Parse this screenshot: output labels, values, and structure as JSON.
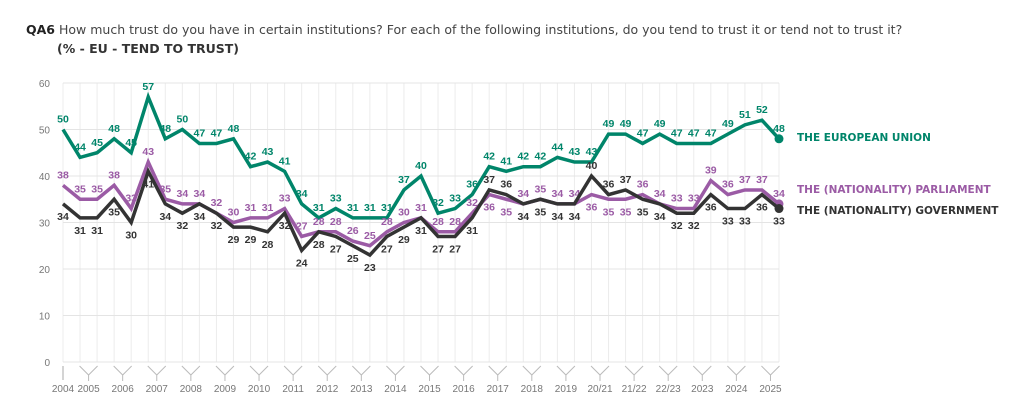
{
  "header": {
    "question_code": "QA6",
    "question": "How much trust do you have in certain institutions? For each of the following institutions, do you tend to trust it or tend not to trust it?",
    "subtitle": "(% - EU - TEND TO TRUST)"
  },
  "chart_data": {
    "type": "line",
    "title": "",
    "xlabel": "",
    "ylabel": "",
    "ylim": [
      0,
      60
    ],
    "yticks": [
      0,
      10,
      20,
      30,
      40,
      50,
      60
    ],
    "grid": true,
    "legend": "right (end-of-line labels)",
    "x_tick_labels": [
      {
        "label": "2004",
        "index": 0
      },
      {
        "label": "2005",
        "index": 1.5
      },
      {
        "label": "2006",
        "index": 3.5
      },
      {
        "label": "2007",
        "index": 5.5
      },
      {
        "label": "2008",
        "index": 7.5
      },
      {
        "label": "2009",
        "index": 9.5
      },
      {
        "label": "2010",
        "index": 11.5
      },
      {
        "label": "2011",
        "index": 13.5
      },
      {
        "label": "2012",
        "index": 15.5
      },
      {
        "label": "2013",
        "index": 17.5
      },
      {
        "label": "2014",
        "index": 19.5
      },
      {
        "label": "2015",
        "index": 21.5
      },
      {
        "label": "2016",
        "index": 23.5
      },
      {
        "label": "2017",
        "index": 25.5
      },
      {
        "label": "2018",
        "index": 27.5
      },
      {
        "label": "2019",
        "index": 29.5
      },
      {
        "label": "20/21",
        "index": 31.5
      },
      {
        "label": "21/22",
        "index": 33.5
      },
      {
        "label": "22/23",
        "index": 35.5
      },
      {
        "label": "2023",
        "index": 37.5
      },
      {
        "label": "2024",
        "index": 39.5
      },
      {
        "label": "2025",
        "index": 41.5
      }
    ],
    "series": [
      {
        "name": "THE EUROPEAN UNION",
        "color": "#00856a",
        "label_pos": "above",
        "values": [
          50,
          44,
          45,
          48,
          45,
          57,
          48,
          50,
          47,
          47,
          48,
          42,
          43,
          41,
          34,
          31,
          33,
          31,
          31,
          31,
          37,
          40,
          32,
          33,
          36,
          42,
          41,
          42,
          42,
          44,
          43,
          43,
          49,
          49,
          47,
          49,
          47,
          47,
          47,
          49,
          51,
          52,
          48
        ]
      },
      {
        "name": "THE (NATIONALITY) PARLIAMENT",
        "color": "#9b5ba5",
        "label_pos": "above",
        "values": [
          38,
          35,
          35,
          38,
          33,
          43,
          35,
          34,
          34,
          32,
          30,
          31,
          31,
          33,
          27,
          28,
          28,
          26,
          25,
          28,
          30,
          31,
          28,
          28,
          32,
          36,
          35,
          34,
          35,
          34,
          34,
          36,
          35,
          35,
          36,
          34,
          33,
          33,
          39,
          36,
          37,
          37,
          34
        ]
      },
      {
        "name": "THE (NATIONALITY) GOVERNMENT",
        "color": "#333333",
        "label_pos": "below",
        "values": [
          34,
          31,
          31,
          35,
          30,
          41,
          34,
          32,
          34,
          32,
          29,
          29,
          28,
          32,
          24,
          28,
          27,
          25,
          23,
          27,
          29,
          31,
          27,
          27,
          31,
          37,
          36,
          34,
          35,
          34,
          34,
          40,
          36,
          37,
          35,
          34,
          32,
          32,
          36,
          33,
          33,
          36,
          33
        ]
      }
    ]
  }
}
